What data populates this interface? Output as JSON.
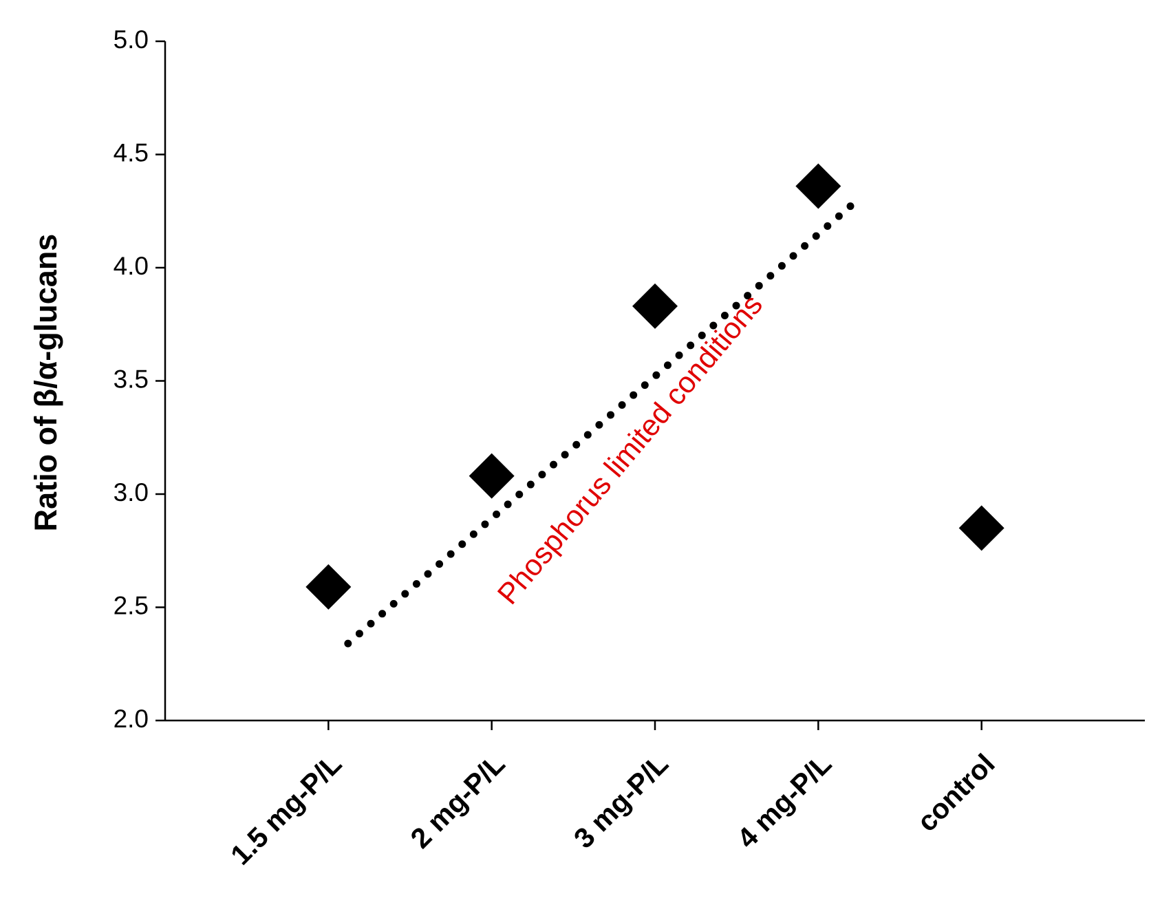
{
  "chart_data": {
    "type": "scatter",
    "y_label": "Ratio of β/α-glucans",
    "categories": [
      "1.5 mg-P/L",
      "2 mg-P/L",
      "3 mg-P/L",
      "4 mg-P/L",
      "control"
    ],
    "values": [
      2.59,
      3.08,
      3.83,
      4.36,
      2.85
    ],
    "color": "#000000",
    "marker": "diamond",
    "ylim": [
      2.0,
      5.0
    ],
    "yticks": [
      {
        "value": 2,
        "label": "2.0"
      },
      2.5,
      {
        "value": 3,
        "label": "3.0"
      },
      3.5,
      {
        "value": 4,
        "label": "4.0"
      },
      4.5,
      {
        "value": 5,
        "label": "5.0"
      }
    ],
    "trend_line": {
      "x": [
        0.12,
        3.21
      ],
      "values": [
        2.34,
        4.28
      ],
      "color": "#000000",
      "style": "dotted"
    },
    "annotation": {
      "text": "Phosphorus limited conditions",
      "color": "#e00000"
    }
  }
}
